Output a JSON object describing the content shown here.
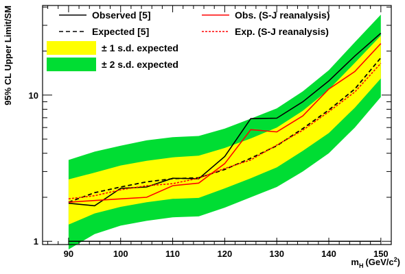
{
  "chart_data": {
    "type": "line",
    "title": "",
    "xlabel_main": "m",
    "xlabel_sub": "H",
    "xlabel_units_pre": "(GeV/c",
    "xlabel_units_sup": "2",
    "xlabel_units_post": ")",
    "ylabel": "95% CL Upper Limit/SM",
    "y_scale": "log",
    "xlim": [
      85,
      152
    ],
    "ylim": [
      0.95,
      41
    ],
    "x_ticks": [
      90,
      100,
      110,
      120,
      130,
      140,
      150
    ],
    "x_tick_labels": [
      "90",
      "100",
      "110",
      "120",
      "130",
      "140",
      "150"
    ],
    "y_ticks": [
      1,
      10
    ],
    "y_tick_labels": [
      "1",
      "10"
    ],
    "reference_line": {
      "y": 1,
      "x_range": [
        90,
        150
      ]
    },
    "legend_position": "top",
    "x": [
      90,
      95,
      100,
      105,
      110,
      115,
      120,
      125,
      130,
      135,
      140,
      145,
      150
    ],
    "bands": [
      {
        "name": "± 2 s.d. expected",
        "color": "#00dd33",
        "low": [
          0.88,
          1.12,
          1.28,
          1.38,
          1.46,
          1.48,
          1.7,
          2.0,
          2.35,
          3.0,
          4.0,
          6.0,
          9.7
        ],
        "high": [
          3.6,
          4.1,
          4.5,
          4.9,
          5.15,
          5.25,
          5.9,
          6.9,
          8.1,
          10.6,
          14.8,
          23.0,
          35.5
        ]
      },
      {
        "name": "± 1 s.d. expected",
        "color": "#ffff00",
        "low": [
          1.3,
          1.55,
          1.72,
          1.85,
          1.95,
          1.98,
          2.3,
          2.7,
          3.2,
          4.15,
          5.5,
          8.2,
          13.0
        ],
        "high": [
          2.65,
          2.95,
          3.3,
          3.55,
          3.75,
          3.85,
          4.35,
          5.05,
          6.0,
          7.8,
          10.9,
          16.6,
          25.5
        ]
      }
    ],
    "series": [
      {
        "name": "Observed [5]",
        "color": "#000000",
        "dash": "none",
        "width": 1.6,
        "values": [
          1.82,
          1.75,
          2.3,
          2.35,
          2.7,
          2.68,
          3.8,
          6.9,
          6.95,
          9.0,
          12.5,
          18.5,
          26.5
        ]
      },
      {
        "name": "Expected [5]",
        "color": "#000000",
        "dash": "6,4",
        "width": 1.8,
        "values": [
          1.85,
          2.15,
          2.35,
          2.55,
          2.68,
          2.72,
          3.1,
          3.7,
          4.5,
          5.9,
          7.9,
          11.0,
          18.0
        ]
      },
      {
        "name": "Obs. (S-J reanalysis)",
        "color": "#ff0000",
        "dash": "none",
        "width": 1.6,
        "values": [
          1.85,
          1.9,
          1.95,
          2.0,
          2.4,
          2.5,
          3.4,
          5.8,
          5.6,
          7.2,
          11.0,
          14.5,
          22.5
        ]
      },
      {
        "name": "Exp. (S-J reanalysis)",
        "color": "#ff0000",
        "dash": "3,2",
        "width": 1.6,
        "values": [
          1.95,
          2.05,
          2.25,
          2.4,
          2.48,
          2.7,
          3.15,
          3.6,
          4.55,
          5.75,
          7.7,
          10.5,
          16.5
        ]
      }
    ],
    "legend": [
      {
        "label": "Observed [5]",
        "kind": "line",
        "color": "#000000",
        "dash": "none"
      },
      {
        "label": "Obs. (S-J reanalysis)",
        "kind": "line",
        "color": "#ff0000",
        "dash": "none"
      },
      {
        "label": "Expected [5]",
        "kind": "line",
        "color": "#000000",
        "dash": "6,4"
      },
      {
        "label": "Exp. (S-J reanalysis)",
        "kind": "line",
        "color": "#ff0000",
        "dash": "3,2"
      },
      {
        "label": "± 1 s.d. expected",
        "kind": "box",
        "color": "#ffff00"
      },
      {
        "label": "± 2 s.d. expected",
        "kind": "box",
        "color": "#00dd33"
      }
    ]
  }
}
